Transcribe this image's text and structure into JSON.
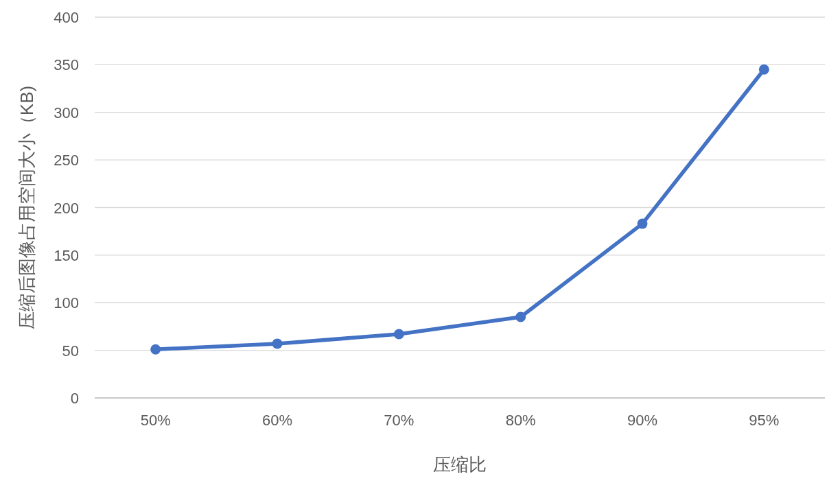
{
  "chart_data": {
    "type": "line",
    "xlabel": "压缩比",
    "ylabel": "压缩后图像占用空间大小（KB)",
    "categories": [
      "50%",
      "60%",
      "70%",
      "80%",
      "90%",
      "95%"
    ],
    "series": [
      {
        "color": "#4472c4",
        "values": [
          51,
          57,
          67,
          85,
          183,
          345
        ]
      }
    ],
    "ylim": [
      0,
      400
    ],
    "yticks": [
      0,
      50,
      100,
      150,
      200,
      250,
      300,
      350,
      400
    ],
    "grid": "y",
    "marker": "circle",
    "line_style": "solid"
  }
}
